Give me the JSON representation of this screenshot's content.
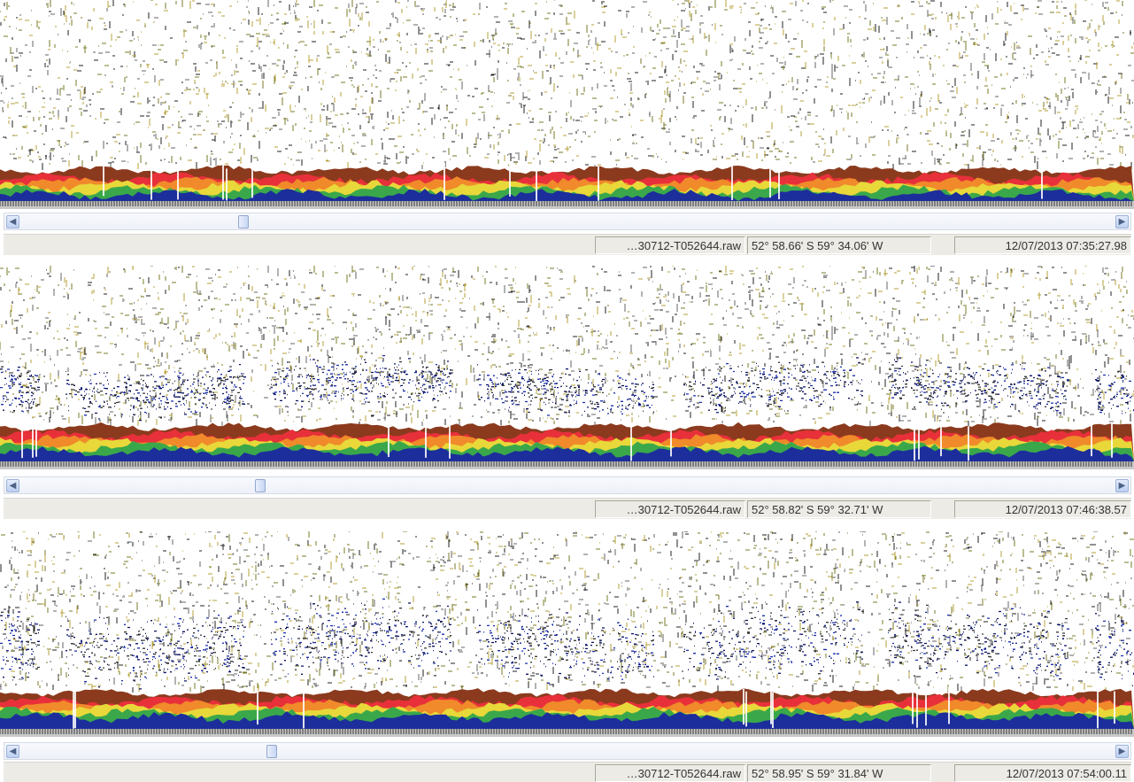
{
  "panels": [
    {
      "file": "…30712-T052644.raw",
      "position": "52° 58.66' S 59° 34.06' W",
      "time": "12/07/2013 07:35:27.98"
    },
    {
      "file": "…30712-T052644.raw",
      "position": "52° 58.82' S 59° 32.71' W",
      "time": "12/07/2013 07:46:38.57"
    },
    {
      "file": "…30712-T052644.raw",
      "position": "52° 58.95' S 59° 31.84' W",
      "time": "12/07/2013 07:54:00.11"
    }
  ]
}
